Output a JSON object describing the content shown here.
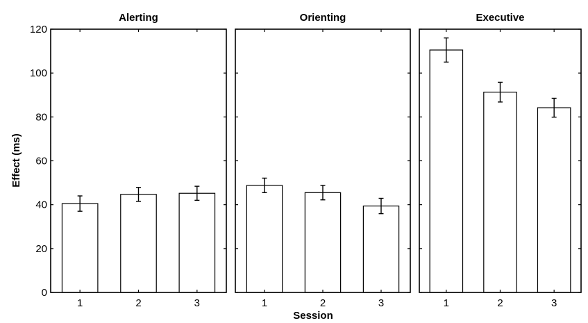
{
  "chart_data": {
    "type": "bar",
    "ylabel": "Effect (ms)",
    "xlabel": "Session",
    "ylim": [
      0,
      120
    ],
    "yticks": [
      0,
      20,
      40,
      60,
      80,
      100,
      120
    ],
    "categories": [
      "1",
      "2",
      "3"
    ],
    "shared_y_axis": true,
    "grid": false,
    "panels": [
      {
        "title": "Alerting",
        "values": [
          40.5,
          44.7,
          45.2
        ],
        "errors": [
          3.5,
          3.2,
          3.2
        ]
      },
      {
        "title": "Orienting",
        "values": [
          48.8,
          45.5,
          39.4
        ],
        "errors": [
          3.3,
          3.3,
          3.5
        ]
      },
      {
        "title": "Executive",
        "values": [
          110.5,
          91.3,
          84.2
        ],
        "errors": [
          5.5,
          4.5,
          4.3
        ]
      }
    ]
  }
}
